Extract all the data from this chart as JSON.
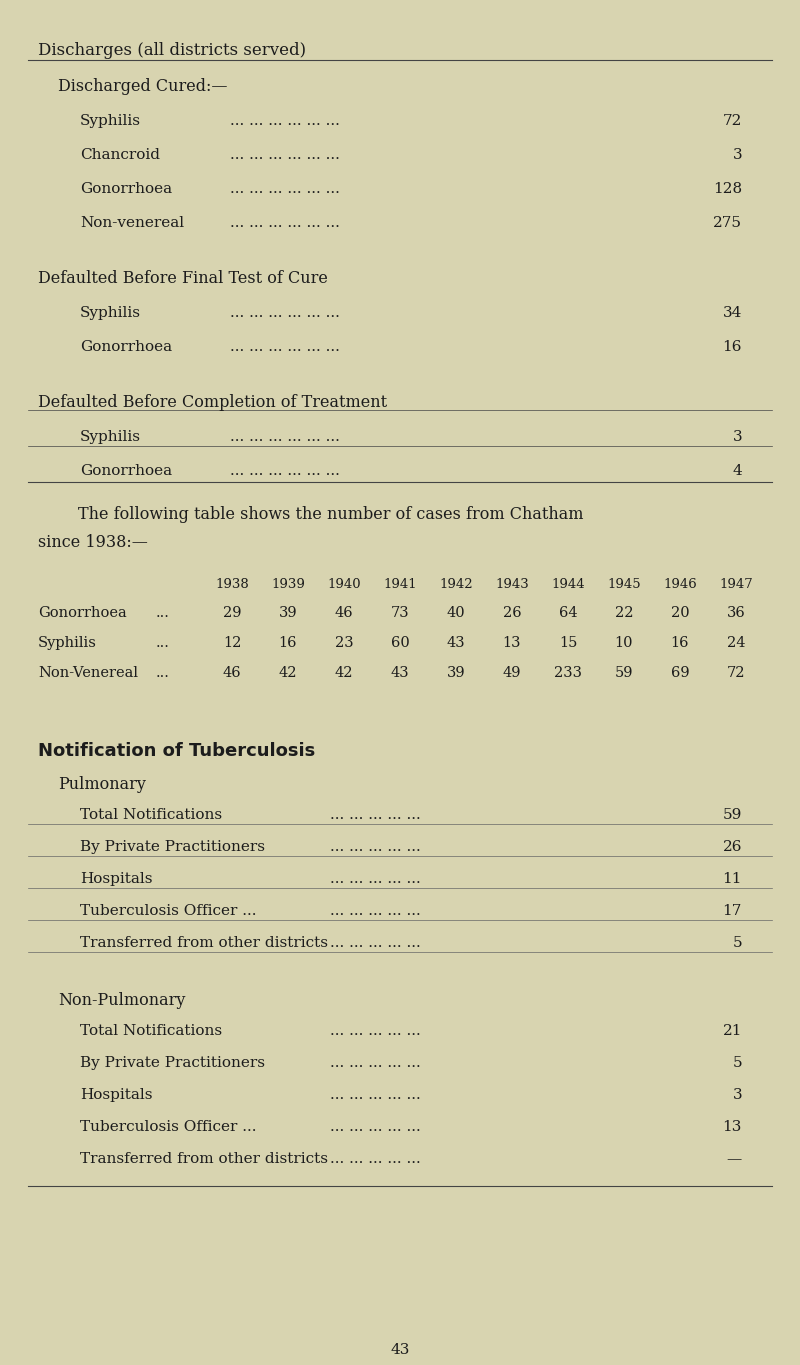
{
  "bg_color": "#d8d4b0",
  "text_color": "#1c1c1c",
  "page_number": "43",
  "title": "Discharges (all districts served)",
  "sec1_heading": "Discharged Cured:—",
  "sec1_items": [
    {
      "label": "Syphilis",
      "value": "72"
    },
    {
      "label": "Chancroid",
      "value": "3"
    },
    {
      "label": "Gonorrhoea",
      "value": "128"
    },
    {
      "label": "Non-venereal",
      "value": "275"
    }
  ],
  "sec2_heading": "Defaulted Before Final Test of Cure",
  "sec2_items": [
    {
      "label": "Syphilis",
      "value": "34"
    },
    {
      "label": "Gonorrhoea",
      "value": "16"
    }
  ],
  "sec3_heading": "Defaulted Before Completion of Treatment",
  "sec3_items": [
    {
      "label": "Syphilis",
      "value": "3"
    },
    {
      "label": "Gonorrhoea",
      "value": "4"
    }
  ],
  "chatham_line1": "    The following table shows the number of cases from Chatham",
  "chatham_line2": "since 1938:—",
  "chatham_years": [
    "1938",
    "1939",
    "1940",
    "1941",
    "1942",
    "1943",
    "1944",
    "1945",
    "1946",
    "1947"
  ],
  "chatham_rows": [
    {
      "label": "Gonorrhoea",
      "dots": "...",
      "values": [
        "29",
        "39",
        "46",
        "73",
        "40",
        "26",
        "64",
        "22",
        "20",
        "36"
      ]
    },
    {
      "label": "Syphilis",
      "dots": "...",
      "values": [
        "12",
        "16",
        "23",
        "60",
        "43",
        "13",
        "15",
        "10",
        "16",
        "24"
      ]
    },
    {
      "label": "Non-Venereal",
      "dots": "...",
      "values": [
        "46",
        "42",
        "42",
        "43",
        "39",
        "49",
        "233",
        "59",
        "69",
        "72"
      ]
    }
  ],
  "tb_heading": "Notification of Tuberculosis",
  "pulmonary_heading": "Pulmonary",
  "pulmonary_items": [
    {
      "label": "Total Notifications",
      "value": "59"
    },
    {
      "label": "By Private Practitioners",
      "value": "26"
    },
    {
      "label": "Hospitals",
      "value": "11"
    },
    {
      "label": "Tuberculosis Officer ...",
      "value": "17"
    },
    {
      "label": "Transferred from other districts",
      "value": "5"
    }
  ],
  "nonpulmonary_heading": "Non-Pulmonary",
  "nonpulmonary_items": [
    {
      "label": "Total Notifications",
      "value": "21"
    },
    {
      "label": "By Private Practitioners",
      "value": "5"
    },
    {
      "label": "Hospitals",
      "value": "3"
    },
    {
      "label": "Tuberculosis Officer ...",
      "value": "13"
    },
    {
      "label": "Transferred from other districts",
      "value": "—"
    }
  ],
  "dots_str": "... ... ... ... ... ...",
  "dots_str_short": "... ... ... ... ...",
  "figwidth": 8.0,
  "figheight": 13.65,
  "dpi": 100
}
